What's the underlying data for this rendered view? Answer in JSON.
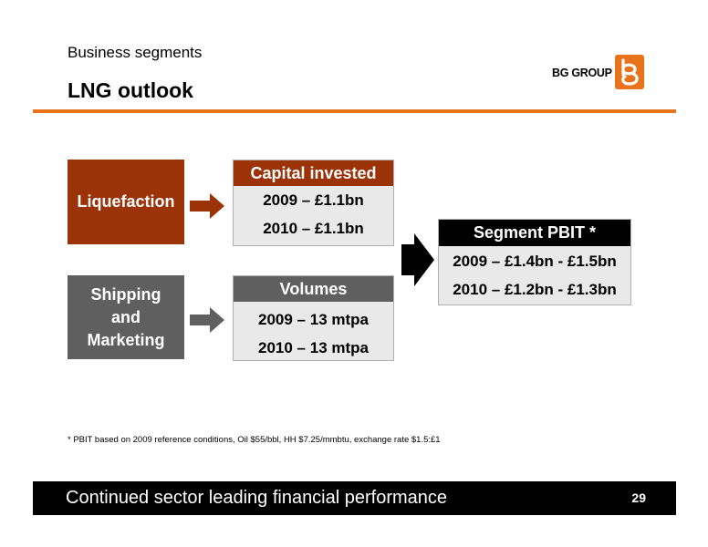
{
  "header": {
    "subtitle": "Business segments",
    "title": "LNG outlook",
    "logo_text": "BG GROUP",
    "accent_color": "#e8731a"
  },
  "diagram": {
    "liquefaction": {
      "label": "Liquefaction",
      "color": "#9b3208"
    },
    "shipping": {
      "lines": [
        "Shipping",
        "and",
        "Marketing"
      ],
      "color": "#5f5f5f"
    },
    "capital": {
      "header": "Capital invested",
      "rows": [
        "2009 – £1.1bn",
        "2010 – £1.1bn"
      ]
    },
    "volumes": {
      "header": "Volumes",
      "rows": [
        "2009 – 13 mtpa",
        "2010 – 13 mtpa"
      ]
    },
    "pbit": {
      "header": "Segment PBIT *",
      "rows": [
        "2009 – £1.4bn - £1.5bn",
        "2010 – £1.2bn - £1.3bn"
      ]
    }
  },
  "footnote": "* PBIT based on 2009 reference conditions, Oil $55/bbl, HH $7.25/mmbtu, exchange rate $1.5:£1",
  "footer": {
    "tagline": "Continued sector leading financial performance",
    "page_number": "29"
  }
}
